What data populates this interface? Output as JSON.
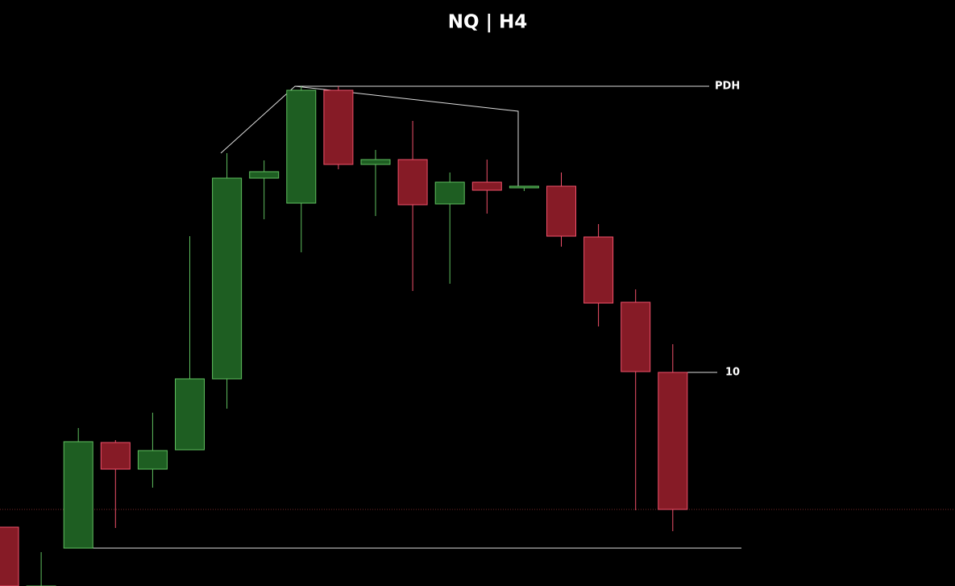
{
  "chart_data": {
    "type": "candlestick",
    "title": "NQ | H4",
    "ylim": [
      0,
      727
    ],
    "up_color": "#1e5e22",
    "up_border": "#5fbf5f",
    "down_color": "#861b26",
    "down_border": "#f0506a",
    "candles": [
      {
        "open": 73,
        "high": 73,
        "low": 0,
        "close": 0
      },
      {
        "open": 0,
        "high": 42,
        "low": 0,
        "close": 0
      },
      {
        "open": 47,
        "high": 196,
        "low": 47,
        "close": 179
      },
      {
        "open": 178,
        "high": 181,
        "low": 72,
        "close": 145
      },
      {
        "open": 145,
        "high": 215,
        "low": 122,
        "close": 168
      },
      {
        "open": 169,
        "high": 434,
        "low": 169,
        "close": 257
      },
      {
        "open": 257,
        "high": 537,
        "low": 220,
        "close": 506
      },
      {
        "open": 506,
        "high": 528,
        "low": 455,
        "close": 514
      },
      {
        "open": 475,
        "high": 620,
        "low": 414,
        "close": 615
      },
      {
        "open": 615,
        "high": 620,
        "low": 517,
        "close": 523
      },
      {
        "open": 523,
        "high": 541,
        "low": 459,
        "close": 529
      },
      {
        "open": 529,
        "high": 577,
        "low": 366,
        "close": 473
      },
      {
        "open": 474,
        "high": 513,
        "low": 375,
        "close": 501
      },
      {
        "open": 501,
        "high": 529,
        "low": 462,
        "close": 491
      },
      {
        "open": 494,
        "high": 496,
        "low": 490,
        "close": 496
      },
      {
        "open": 496,
        "high": 513,
        "low": 421,
        "close": 434
      },
      {
        "open": 433,
        "high": 449,
        "low": 322,
        "close": 351
      },
      {
        "open": 352,
        "high": 368,
        "low": 94,
        "close": 266
      },
      {
        "open": 265,
        "high": 300,
        "low": 68,
        "close": 95
      }
    ],
    "levels": [
      {
        "label": "PDH",
        "value": 620
      },
      {
        "label": "10",
        "value": 265
      },
      {
        "value": 47
      },
      {
        "value": 95,
        "style": "dotted"
      }
    ]
  }
}
